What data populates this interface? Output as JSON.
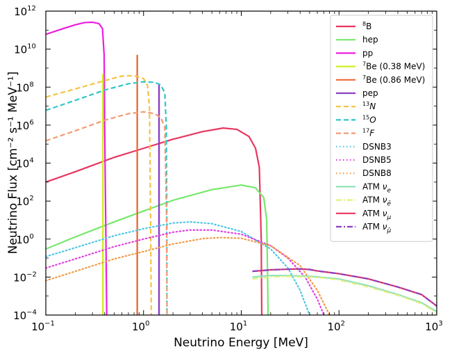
{
  "chart_data": {
    "type": "line",
    "xlabel": "Neutrino Energy [MeV]",
    "ylabel": "Neutrino Flux [cm⁻² s⁻¹ MeV⁻¹]",
    "xscale": "log",
    "yscale": "log",
    "xlim": [
      0.1,
      1000
    ],
    "ylim": [
      0.0001,
      1000000000000
    ],
    "grid": false,
    "legend_position": "top-right",
    "x_ticks": [
      {
        "value": 0.1,
        "base": "10",
        "exp": "−1"
      },
      {
        "value": 1,
        "base": "10",
        "exp": "0"
      },
      {
        "value": 10,
        "base": "10",
        "exp": "1"
      },
      {
        "value": 100,
        "base": "10",
        "exp": "2"
      },
      {
        "value": 1000,
        "base": "10",
        "exp": "3"
      }
    ],
    "y_ticks": [
      {
        "value": 0.0001,
        "base": "10",
        "exp": "−4"
      },
      {
        "value": 0.01,
        "base": "10",
        "exp": "−2"
      },
      {
        "value": 1,
        "base": "10",
        "exp": "0"
      },
      {
        "value": 100,
        "base": "10",
        "exp": "2"
      },
      {
        "value": 10000,
        "base": "10",
        "exp": "4"
      },
      {
        "value": 1000000,
        "base": "10",
        "exp": "6"
      },
      {
        "value": 100000000,
        "base": "10",
        "exp": "8"
      },
      {
        "value": 10000000000,
        "base": "10",
        "exp": "10"
      },
      {
        "value": 1000000000000,
        "base": "10",
        "exp": "12"
      }
    ],
    "series": [
      {
        "name": "⁸B",
        "color": "#e8355e",
        "dash": "solid",
        "x": [
          0.1,
          0.2,
          0.5,
          1,
          2,
          4,
          6.5,
          9,
          12,
          14,
          15.3,
          16,
          16.2
        ],
        "y": [
          1000,
          3500,
          20000,
          60000,
          180000,
          450000,
          700000,
          600000,
          250000,
          60000,
          6000,
          1,
          0.0001
        ]
      },
      {
        "name": "hep",
        "color": "#76e86c",
        "dash": "solid",
        "x": [
          0.1,
          0.2,
          0.5,
          1,
          2,
          5,
          10,
          14,
          17,
          18.2,
          18.6,
          18.8
        ],
        "y": [
          0.3,
          1.3,
          8,
          30,
          110,
          400,
          700,
          500,
          150,
          10,
          0.01,
          0.0001
        ]
      },
      {
        "name": "pp",
        "color": "#ea1ede",
        "dash": "solid",
        "x": [
          0.1,
          0.15,
          0.2,
          0.25,
          0.3,
          0.35,
          0.38,
          0.395,
          0.4,
          0.41,
          0.42
        ],
        "y": [
          60000000000,
          120000000000,
          190000000000,
          250000000000,
          260000000000,
          220000000000,
          120000000000,
          5000000000,
          1000000,
          10,
          0.0001
        ]
      },
      {
        "name": "⁷Be (0.38 MeV)",
        "color": "#cfee23",
        "dash": "solid",
        "x": [
          0.384,
          0.384
        ],
        "y": [
          0.0001,
          500000000
        ]
      },
      {
        "name": "⁷Be (0.86 MeV)",
        "color": "#ee6a3a",
        "dash": "solid",
        "x": [
          0.862,
          0.862
        ],
        "y": [
          0.0001,
          5000000000
        ]
      },
      {
        "name": "pep",
        "color": "#8b3ec2",
        "dash": "solid",
        "x": [
          1.44,
          1.44
        ],
        "y": [
          0.0001,
          150000000
        ]
      },
      {
        "name": "¹³N",
        "color": "#f5c242",
        "dash": "dashed",
        "x": [
          0.1,
          0.2,
          0.4,
          0.6,
          0.8,
          1.0,
          1.1,
          1.15,
          1.18,
          1.2
        ],
        "y": [
          30000000,
          80000000,
          220000000,
          380000000,
          400000000,
          280000000,
          120000000,
          8000000,
          10,
          0.0001
        ]
      },
      {
        "name": "¹⁵O",
        "color": "#2fc6c6",
        "dash": "dashed",
        "x": [
          0.1,
          0.2,
          0.4,
          0.7,
          1.0,
          1.3,
          1.5,
          1.65,
          1.71,
          1.73,
          1.735
        ],
        "y": [
          6000000,
          20000000,
          70000000,
          150000000,
          190000000,
          180000000,
          130000000,
          50000000,
          800000,
          10,
          0.0001
        ]
      },
      {
        "name": "¹⁷F",
        "color": "#f39a72",
        "dash": "dashed",
        "x": [
          0.1,
          0.2,
          0.4,
          0.7,
          1.0,
          1.3,
          1.5,
          1.65,
          1.72,
          1.74
        ],
        "y": [
          150000,
          500000,
          1800000,
          4000000,
          5000000,
          4000000,
          2500000,
          800000,
          10,
          0.0001
        ]
      },
      {
        "name": "DSNB3",
        "color": "#4cc6e0",
        "dash": "dotted",
        "x": [
          0.1,
          0.2,
          0.5,
          1,
          2,
          3,
          5,
          10,
          20,
          30,
          40,
          50
        ],
        "y": [
          0.12,
          0.35,
          1.5,
          3.5,
          7,
          8,
          6.5,
          2.5,
          0.3,
          0.03,
          0.002,
          0.0001
        ]
      },
      {
        "name": "DSNB5",
        "color": "#e040e0",
        "dash": "dotted",
        "x": [
          0.1,
          0.2,
          0.5,
          1,
          2,
          3,
          5,
          10,
          20,
          30,
          45,
          60,
          70
        ],
        "y": [
          0.03,
          0.09,
          0.4,
          1.0,
          2.3,
          3.0,
          3.0,
          1.8,
          0.45,
          0.1,
          0.01,
          0.0007,
          0.0001
        ]
      },
      {
        "name": "DSNB8",
        "color": "#f29a45",
        "dash": "dotted",
        "x": [
          0.1,
          0.2,
          0.5,
          1,
          2,
          4,
          6,
          10,
          20,
          40,
          60,
          80
        ],
        "y": [
          0.0065,
          0.02,
          0.09,
          0.22,
          0.55,
          1.05,
          1.2,
          1.1,
          0.45,
          0.04,
          0.002,
          0.0001
        ]
      },
      {
        "name": "ATM νₑ",
        "color": "#8fe2b8",
        "dash": "solid",
        "x": [
          13,
          20,
          30,
          50,
          70,
          100,
          200,
          400,
          700,
          1000
        ],
        "y": [
          0.01,
          0.012,
          0.012,
          0.011,
          0.0095,
          0.008,
          0.0035,
          0.0012,
          0.00045,
          0.00015
        ]
      },
      {
        "name": "ATM ν̄ₑ",
        "color": "#e3f07a",
        "dash": "dashdot",
        "x": [
          13,
          20,
          30,
          50,
          70,
          100,
          200,
          400,
          700,
          1000
        ],
        "y": [
          0.008,
          0.01,
          0.011,
          0.01,
          0.009,
          0.007,
          0.003,
          0.0011,
          0.0004,
          0.00013
        ]
      },
      {
        "name": "ATM ν_μ",
        "color": "#e8355e",
        "dash": "solid",
        "x": [
          13,
          20,
          30,
          40,
          50,
          60,
          70,
          100,
          200,
          400,
          700,
          1000
        ],
        "y": [
          0.02,
          0.024,
          0.026,
          0.027,
          0.025,
          0.021,
          0.019,
          0.015,
          0.008,
          0.003,
          0.0012,
          0.0003
        ]
      },
      {
        "name": "ATM ν̄_μ",
        "color": "#8b3ec2",
        "dash": "dashdot",
        "x": [
          13,
          20,
          30,
          40,
          50,
          60,
          70,
          100,
          200,
          400,
          700,
          1000
        ],
        "y": [
          0.02,
          0.024,
          0.026,
          0.027,
          0.025,
          0.021,
          0.019,
          0.015,
          0.008,
          0.003,
          0.0012,
          0.0003
        ]
      }
    ],
    "legend": [
      {
        "pre": "",
        "sup": "8",
        "main": "B",
        "sub": "",
        "italic": false
      },
      {
        "pre": "",
        "sup": "",
        "main": "hep",
        "sub": "",
        "italic": false
      },
      {
        "pre": "",
        "sup": "",
        "main": "pp",
        "sub": "",
        "italic": false
      },
      {
        "pre": "",
        "sup": "7",
        "main": "Be (0.38 MeV)",
        "sub": "",
        "italic": false
      },
      {
        "pre": "",
        "sup": "7",
        "main": "Be (0.86 MeV)",
        "sub": "",
        "italic": false
      },
      {
        "pre": "",
        "sup": "",
        "main": "pep",
        "sub": "",
        "italic": false
      },
      {
        "pre": "",
        "sup": "13",
        "main": "N",
        "sub": "",
        "italic": true
      },
      {
        "pre": "",
        "sup": "15",
        "main": "O",
        "sub": "",
        "italic": true
      },
      {
        "pre": "",
        "sup": "17",
        "main": "F",
        "sub": "",
        "italic": true
      },
      {
        "pre": "",
        "sup": "",
        "main": "DSNB3",
        "sub": "",
        "italic": false
      },
      {
        "pre": "",
        "sup": "",
        "main": "DSNB5",
        "sub": "",
        "italic": false
      },
      {
        "pre": "",
        "sup": "",
        "main": "DSNB8",
        "sub": "",
        "italic": false
      },
      {
        "pre": "ATM ",
        "sup": "",
        "main": "ν",
        "sub": "e",
        "italic": true
      },
      {
        "pre": "ATM ",
        "sup": "",
        "main": "ν",
        "sub": "ē",
        "italic": true
      },
      {
        "pre": "ATM ",
        "sup": "",
        "main": "ν",
        "sub": "μ",
        "italic": true
      },
      {
        "pre": "ATM ",
        "sup": "",
        "main": "ν",
        "sub": "μ̄",
        "italic": true
      }
    ]
  }
}
